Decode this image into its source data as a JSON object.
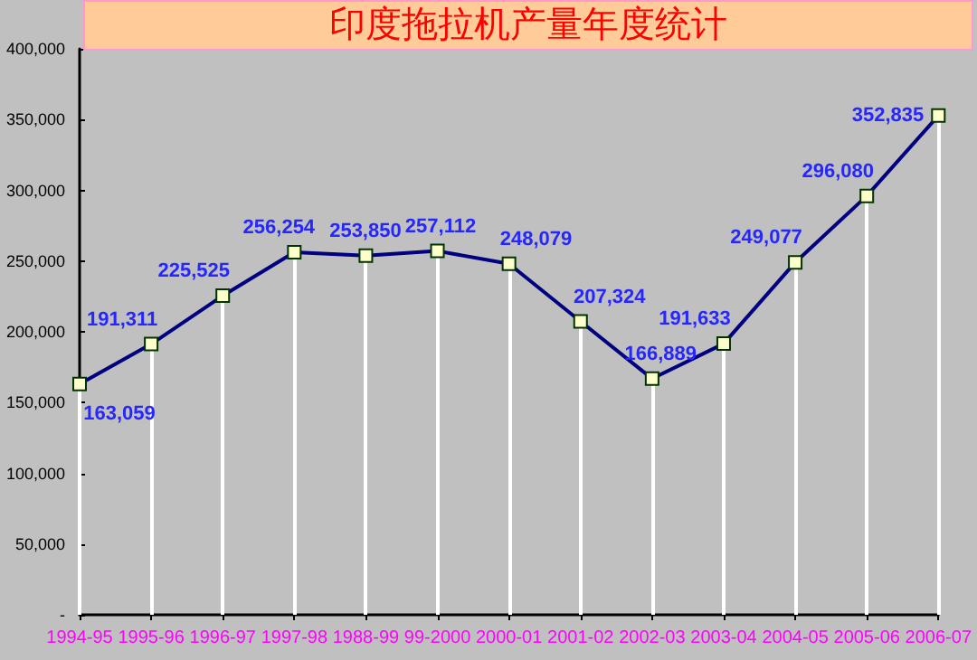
{
  "chart_data": {
    "type": "line",
    "title": "印度拖拉机产量年度统计",
    "categories": [
      "1994-95",
      "1995-96",
      "1996-97",
      "1997-98",
      "1988-99",
      "99-2000",
      "2000-01",
      "2001-02",
      "2002-03",
      "2003-04",
      "2004-05",
      "2005-06",
      "2006-07"
    ],
    "values": [
      163059,
      191311,
      225525,
      256254,
      253850,
      257112,
      248079,
      207324,
      166889,
      191633,
      249077,
      296080,
      352835
    ],
    "value_labels": [
      "163,059",
      "191,311",
      "225,525",
      "256,254",
      "253,850",
      "257,112",
      "248,079",
      "207,324",
      "166,889",
      "191,633",
      "249,077",
      "296,080",
      "352,835"
    ],
    "color": "#000080",
    "ylim": [
      0,
      400000
    ],
    "yticks": [
      {
        "value": 0,
        "label": "-"
      },
      {
        "value": 50000,
        "label": "50,000"
      },
      {
        "value": 100000,
        "label": "100,000"
      },
      {
        "value": 150000,
        "label": "150,000"
      },
      {
        "value": 200000,
        "label": "200,000"
      },
      {
        "value": 250000,
        "label": "250,000"
      },
      {
        "value": 300000,
        "label": "300,000"
      },
      {
        "value": 350000,
        "label": "350,000"
      },
      {
        "value": 400000,
        "label": "400,000"
      }
    ],
    "marker": "square"
  }
}
